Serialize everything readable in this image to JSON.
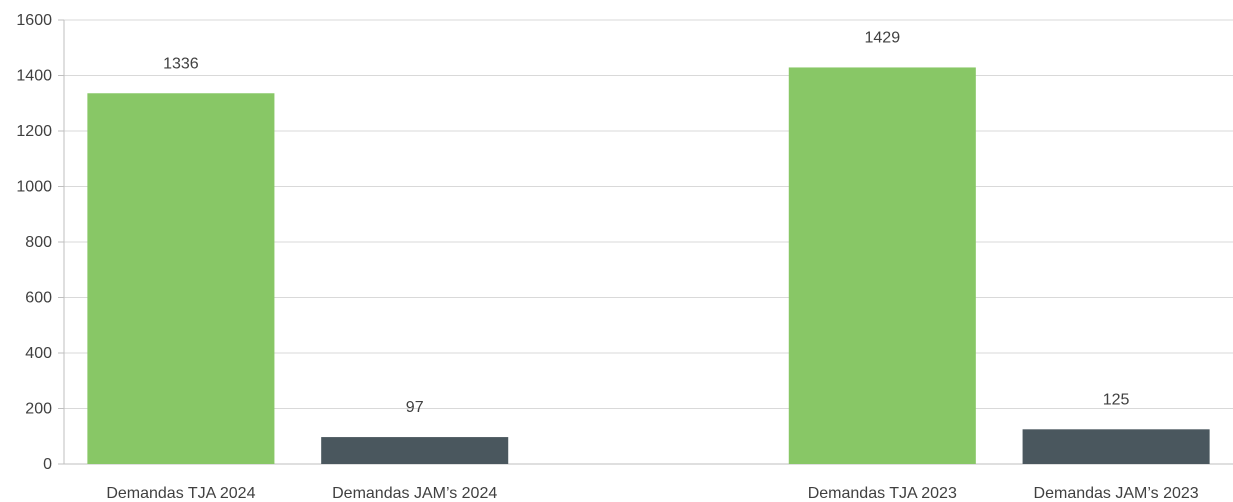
{
  "chart_data": {
    "type": "bar",
    "categories": [
      "Demandas TJA 2024",
      "Demandas JAM’s 2024",
      "",
      "Demandas TJA 2023",
      "Demandas JAM’s 2023"
    ],
    "values": [
      1336,
      97,
      null,
      1429,
      125
    ],
    "bar_colors": [
      "#88c766",
      "#4a575e",
      null,
      "#88c766",
      "#4a575e"
    ],
    "data_labels": [
      "1336",
      "97",
      "",
      "1429",
      "125"
    ],
    "y_ticks": [
      "0",
      "200",
      "400",
      "600",
      "800",
      "1000",
      "1200",
      "1400",
      "1600"
    ],
    "ylim": [
      0,
      1600
    ],
    "grid": true,
    "legend": "none",
    "title": "",
    "xlabel": "",
    "ylabel": ""
  }
}
